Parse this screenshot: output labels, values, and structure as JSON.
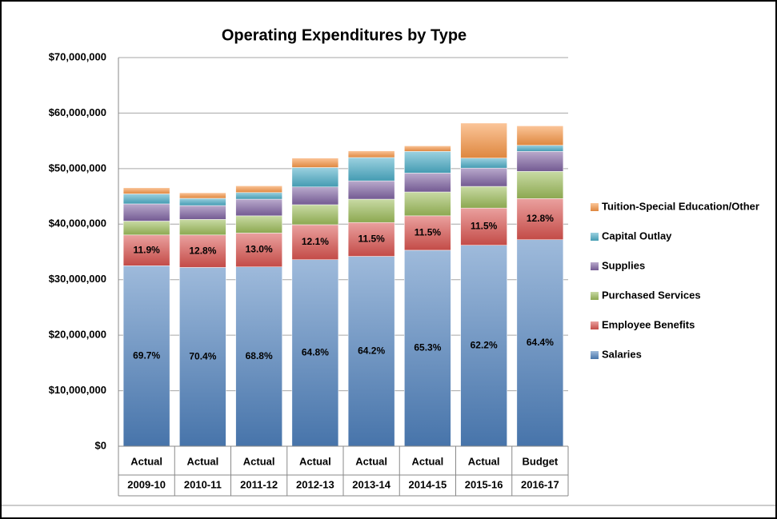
{
  "chart_data": {
    "type": "stacked_bar",
    "title": "Operating Expenditures by Type",
    "categories": [
      [
        "Actual",
        "2009-10"
      ],
      [
        "Actual",
        "2010-11"
      ],
      [
        "Actual",
        "2011-12"
      ],
      [
        "Actual",
        "2012-13"
      ],
      [
        "Actual",
        "2013-14"
      ],
      [
        "Actual",
        "2014-15"
      ],
      [
        "Actual",
        "2015-16"
      ],
      [
        "Budget",
        "2016-17"
      ]
    ],
    "ylim": [
      0,
      70000000
    ],
    "yticks": [
      {
        "value": 0,
        "label": "$0"
      },
      {
        "value": 10000000,
        "label": "$10,000,000"
      },
      {
        "value": 20000000,
        "label": "$20,000,000"
      },
      {
        "value": 30000000,
        "label": "$30,000,000"
      },
      {
        "value": 40000000,
        "label": "$40,000,000"
      },
      {
        "value": 50000000,
        "label": "$50,000,000"
      },
      {
        "value": 60000000,
        "label": "$60,000,000"
      },
      {
        "value": 70000000,
        "label": "$70,000,000"
      }
    ],
    "grid": true,
    "legend": "right",
    "series": [
      {
        "name": "Salaries",
        "color": "#4f81bd",
        "values": [
          32500000,
          32200000,
          32300000,
          33600000,
          34200000,
          35300000,
          36200000,
          37200000
        ],
        "share_labels": [
          "69.7%",
          "70.4%",
          "68.8%",
          "64.8%",
          "64.2%",
          "65.3%",
          "62.2%",
          "64.4%"
        ]
      },
      {
        "name": "Employee Benefits",
        "color": "#d9534f",
        "values": [
          5550000,
          5850000,
          6100000,
          6300000,
          6100000,
          6200000,
          6700000,
          7400000
        ],
        "share_labels": [
          "11.9%",
          "12.8%",
          "13.0%",
          "12.1%",
          "11.5%",
          "11.5%",
          "11.5%",
          "12.8%"
        ]
      },
      {
        "name": "Purchased Services",
        "color": "#9bbb59",
        "values": [
          2500000,
          2800000,
          3100000,
          3600000,
          4200000,
          4300000,
          3900000,
          4900000
        ]
      },
      {
        "name": "Supplies",
        "color": "#8064a2",
        "values": [
          3100000,
          2500000,
          3000000,
          3200000,
          3300000,
          3400000,
          3300000,
          3600000
        ]
      },
      {
        "name": "Capital Outlay",
        "color": "#4bacc6",
        "values": [
          1800000,
          1300000,
          1200000,
          3500000,
          4200000,
          3900000,
          1800000,
          1100000
        ]
      },
      {
        "name": "Tuition-Special Education/Other",
        "color": "#f79646",
        "values": [
          1100000,
          1000000,
          1200000,
          1700000,
          1200000,
          1000000,
          6300000,
          3500000
        ]
      }
    ]
  }
}
